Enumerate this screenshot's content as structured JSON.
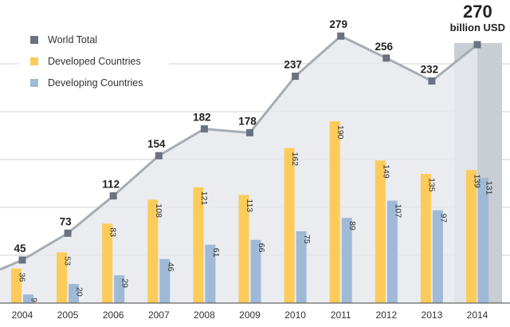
{
  "chart_data": {
    "type": "bar",
    "categories": [
      "2004",
      "2005",
      "2006",
      "2007",
      "2008",
      "2009",
      "2010",
      "2011",
      "2012",
      "2013",
      "2014"
    ],
    "series": [
      {
        "name": "World Total",
        "kind": "line",
        "color": "#6b7280",
        "values": [
          45,
          73,
          112,
          154,
          182,
          178,
          237,
          279,
          256,
          232,
          270
        ]
      },
      {
        "name": "Developed Countries",
        "kind": "bar",
        "color": "#fdcb5a",
        "values": [
          36,
          53,
          83,
          108,
          121,
          113,
          162,
          190,
          149,
          135,
          139
        ]
      },
      {
        "name": "Developing Countries",
        "kind": "bar",
        "color": "#9fbad6",
        "values": [
          9,
          20,
          29,
          46,
          61,
          66,
          75,
          89,
          107,
          97,
          131
        ]
      }
    ],
    "ylim": [
      0,
      300
    ],
    "grid": true,
    "legend_position": "top-left",
    "highlight_category": "2014",
    "total_labels": [
      "45",
      "73",
      "112",
      "154",
      "182",
      "178",
      "237",
      "279",
      "256",
      "232"
    ],
    "final_total": {
      "value": "270",
      "unit": "billion USD"
    }
  },
  "legend": {
    "world": "World Total",
    "developed": "Developed Countries",
    "developing": "Developing Countries"
  },
  "colors": {
    "world": "#6b7280",
    "developed": "#fdcb5a",
    "developing": "#9fbad6",
    "area": "#e6e9ec",
    "highlight": "#c8ced4",
    "grid": "#d0d0d0"
  }
}
